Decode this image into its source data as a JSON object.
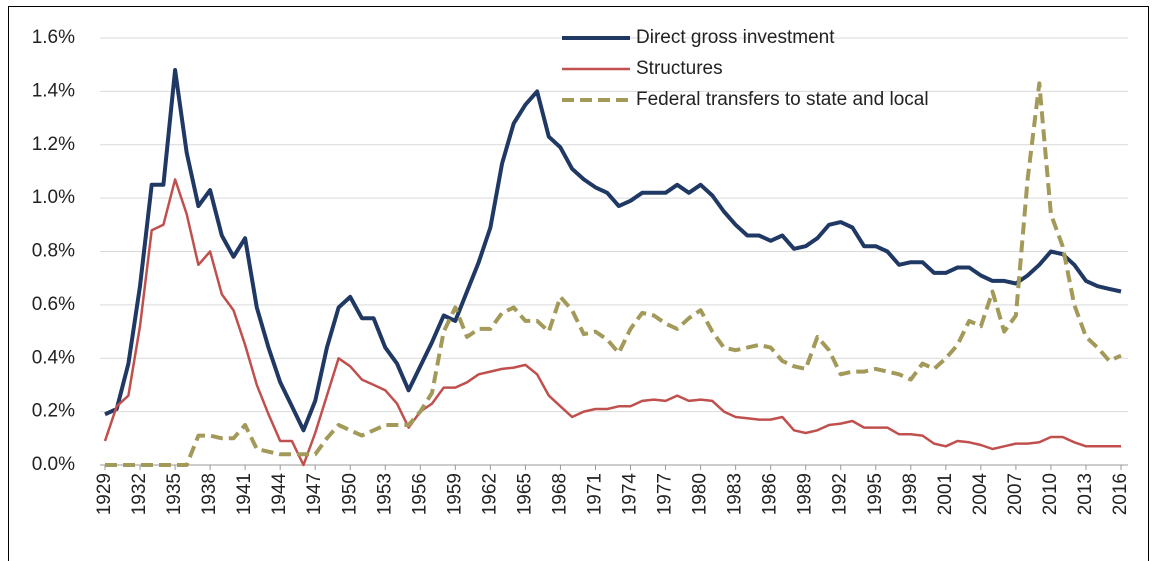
{
  "chart_data": {
    "type": "line",
    "x": [
      1929,
      1930,
      1931,
      1932,
      1933,
      1934,
      1935,
      1936,
      1937,
      1938,
      1939,
      1940,
      1941,
      1942,
      1943,
      1944,
      1945,
      1946,
      1947,
      1948,
      1949,
      1950,
      1951,
      1952,
      1953,
      1954,
      1955,
      1956,
      1957,
      1958,
      1959,
      1960,
      1961,
      1962,
      1963,
      1964,
      1965,
      1966,
      1967,
      1968,
      1969,
      1970,
      1971,
      1972,
      1973,
      1974,
      1975,
      1976,
      1977,
      1978,
      1979,
      1980,
      1981,
      1982,
      1983,
      1984,
      1985,
      1986,
      1987,
      1988,
      1989,
      1990,
      1991,
      1992,
      1993,
      1994,
      1995,
      1996,
      1997,
      1998,
      1999,
      2000,
      2001,
      2002,
      2003,
      2004,
      2005,
      2006,
      2007,
      2008,
      2009,
      2010,
      2011,
      2012,
      2013,
      2014,
      2015,
      2016
    ],
    "series": [
      {
        "name": "Direct gross investment",
        "color": "#1f3864",
        "dashed": false,
        "values": [
          0.19,
          0.21,
          0.38,
          0.67,
          1.05,
          1.05,
          1.48,
          1.17,
          0.97,
          1.03,
          0.86,
          0.78,
          0.85,
          0.59,
          0.44,
          0.31,
          0.22,
          0.13,
          0.24,
          0.44,
          0.59,
          0.63,
          0.55,
          0.55,
          0.44,
          0.38,
          0.28,
          0.37,
          0.46,
          0.56,
          0.54,
          0.65,
          0.76,
          0.89,
          1.13,
          1.28,
          1.35,
          1.4,
          1.23,
          1.19,
          1.11,
          1.07,
          1.04,
          1.02,
          0.97,
          0.99,
          1.02,
          1.02,
          1.02,
          1.05,
          1.02,
          1.05,
          1.01,
          0.95,
          0.9,
          0.86,
          0.86,
          0.84,
          0.86,
          0.81,
          0.82,
          0.85,
          0.9,
          0.91,
          0.89,
          0.82,
          0.82,
          0.8,
          0.75,
          0.76,
          0.76,
          0.72,
          0.72,
          0.74,
          0.74,
          0.71,
          0.69,
          0.69,
          0.68,
          0.71,
          0.75,
          0.8,
          0.79,
          0.75,
          0.69,
          0.67,
          0.66,
          0.65
        ]
      },
      {
        "name": "Structures",
        "color": "#c0504d",
        "dashed": false,
        "values": [
          0.09,
          0.22,
          0.26,
          0.52,
          0.88,
          0.9,
          1.07,
          0.94,
          0.75,
          0.8,
          0.64,
          0.58,
          0.45,
          0.3,
          0.19,
          0.09,
          0.09,
          0.0,
          0.12,
          0.26,
          0.4,
          0.37,
          0.32,
          0.3,
          0.28,
          0.23,
          0.14,
          0.2,
          0.23,
          0.29,
          0.29,
          0.31,
          0.34,
          0.35,
          0.36,
          0.365,
          0.375,
          0.34,
          0.26,
          0.22,
          0.18,
          0.2,
          0.21,
          0.21,
          0.22,
          0.22,
          0.24,
          0.245,
          0.24,
          0.26,
          0.24,
          0.245,
          0.24,
          0.2,
          0.18,
          0.175,
          0.17,
          0.17,
          0.18,
          0.13,
          0.12,
          0.13,
          0.15,
          0.155,
          0.165,
          0.14,
          0.14,
          0.14,
          0.115,
          0.115,
          0.11,
          0.08,
          0.07,
          0.09,
          0.085,
          0.075,
          0.06,
          0.07,
          0.08,
          0.08,
          0.085,
          0.105,
          0.105,
          0.085,
          0.07,
          0.07,
          0.07,
          0.07
        ]
      },
      {
        "name": "Federal transfers to state and local",
        "color": "#a39a5a",
        "dashed": true,
        "values": [
          0,
          0,
          0,
          0,
          0,
          0,
          0,
          0,
          0.11,
          0.11,
          0.1,
          0.1,
          0.15,
          0.06,
          0.05,
          0.04,
          0.04,
          0.04,
          0.04,
          0.1,
          0.15,
          0.13,
          0.11,
          0.13,
          0.15,
          0.15,
          0.15,
          0.2,
          0.27,
          0.5,
          0.59,
          0.48,
          0.51,
          0.51,
          0.57,
          0.59,
          0.54,
          0.54,
          0.5,
          0.63,
          0.58,
          0.49,
          0.5,
          0.47,
          0.42,
          0.51,
          0.57,
          0.56,
          0.53,
          0.51,
          0.55,
          0.58,
          0.5,
          0.44,
          0.43,
          0.44,
          0.45,
          0.44,
          0.39,
          0.37,
          0.36,
          0.48,
          0.43,
          0.34,
          0.35,
          0.35,
          0.36,
          0.35,
          0.34,
          0.32,
          0.38,
          0.36,
          0.4,
          0.45,
          0.54,
          0.52,
          0.65,
          0.5,
          0.56,
          1.07,
          1.43,
          0.94,
          0.82,
          0.6,
          0.48,
          0.44,
          0.39,
          0.41
        ]
      }
    ],
    "xlim": [
      1929,
      2016
    ],
    "xticks": [
      1929,
      1932,
      1935,
      1938,
      1941,
      1944,
      1947,
      1950,
      1953,
      1956,
      1959,
      1962,
      1965,
      1968,
      1971,
      1974,
      1977,
      1980,
      1983,
      1986,
      1989,
      1992,
      1995,
      1998,
      2001,
      2004,
      2007,
      2010,
      2013,
      2016
    ],
    "ylim": [
      0,
      1.6
    ],
    "yticks": [
      {
        "value": 0,
        "label": "0.0%"
      },
      {
        "value": 0.2,
        "label": "0.2%"
      },
      {
        "value": 0.4,
        "label": "0.4%"
      },
      {
        "value": 0.6,
        "label": "0.6%"
      },
      {
        "value": 0.8,
        "label": "0.8%"
      },
      {
        "value": 1.0,
        "label": "1.0%"
      },
      {
        "value": 1.2,
        "label": "1.2%"
      },
      {
        "value": 1.4,
        "label": "1.4%"
      },
      {
        "value": 1.6,
        "label": "1.6%"
      }
    ],
    "grid": true
  }
}
